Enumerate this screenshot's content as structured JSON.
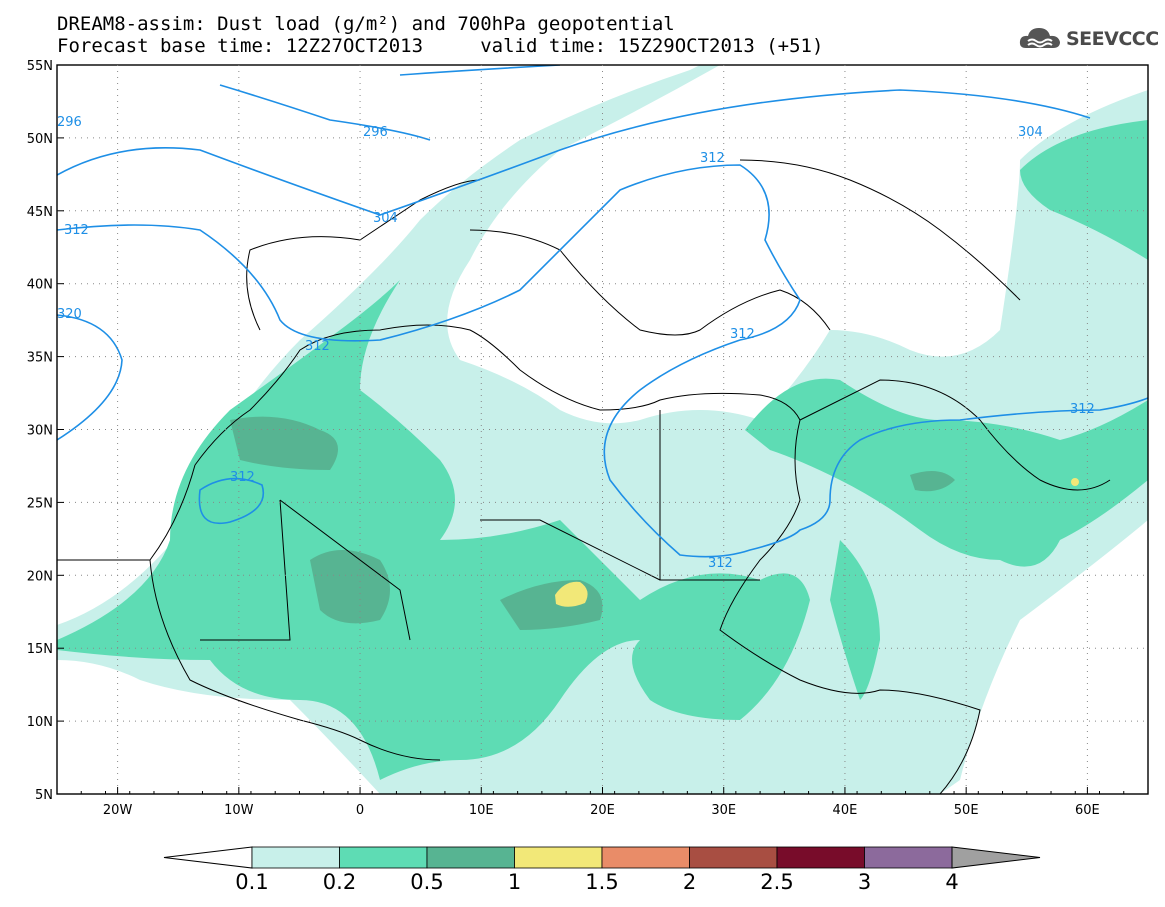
{
  "header": {
    "title_line1": "DREAM8-assim: Dust load (g/m²) and 700hPa geopotential",
    "title_line2": "Forecast base time: 12Z27OCT2013     valid time: 15Z29OCT2013 (+51)",
    "logo_text": "SEEVCCC"
  },
  "map": {
    "lon_range": [
      -25,
      65
    ],
    "lat_range": [
      5,
      55
    ],
    "lon_ticks": [
      "20W",
      "10W",
      "0",
      "10E",
      "20E",
      "30E",
      "40E",
      "50E",
      "60E"
    ],
    "lat_ticks": [
      "55N",
      "50N",
      "45N",
      "40N",
      "35N",
      "30N",
      "25N",
      "20N",
      "15N",
      "10N",
      "5N"
    ],
    "contour_labels": [
      "296",
      "296",
      "304",
      "304",
      "312",
      "312",
      "312",
      "312",
      "312",
      "312",
      "312",
      "320"
    ],
    "contour_color": "#1e8fe6",
    "field": "Dust load",
    "contour_field": "700hPa geopotential"
  },
  "legend": {
    "bounds": [
      "0.1",
      "0.2",
      "0.5",
      "1",
      "1.5",
      "2",
      "2.5",
      "3",
      "4"
    ],
    "colors": [
      "#c8f0ea",
      "#5edcb4",
      "#57b492",
      "#f2e878",
      "#e98c68",
      "#a84e42",
      "#780c2a",
      "#8c6a9c"
    ],
    "under_color": "#ffffff",
    "over_color": "#a0a0a0"
  }
}
